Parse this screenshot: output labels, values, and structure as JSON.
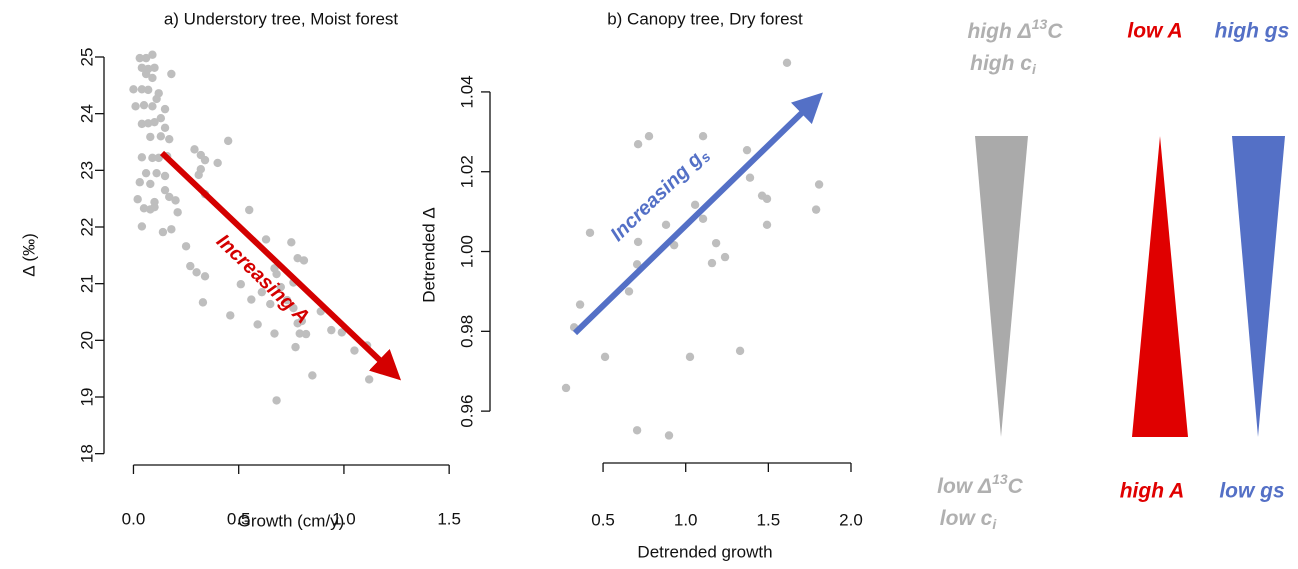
{
  "chart_data": [
    {
      "type": "scatter",
      "title": "a) Understory tree, Moist forest",
      "x_label": "Growth (cm/y)",
      "y_label": "Δ (‰)",
      "annotation": [
        "Increasing A"
      ],
      "color": "#bebebe",
      "x": [
        0.03,
        0.06,
        0.09,
        0.04,
        0.07,
        0.1,
        0.06,
        0.09,
        0.18,
        0.0,
        0.04,
        0.07,
        0.12,
        0.01,
        0.05,
        0.09,
        0.11,
        0.04,
        0.07,
        0.1,
        0.13,
        0.15,
        0.15,
        0.17,
        0.13,
        0.08,
        0.45,
        0.29,
        0.32,
        0.34,
        0.4,
        0.16,
        0.09,
        0.04,
        0.12,
        0.32,
        0.06,
        0.11,
        0.15,
        0.03,
        0.08,
        0.15,
        0.31,
        0.34,
        0.02,
        0.1,
        0.17,
        0.05,
        0.08,
        0.2,
        0.1,
        0.21,
        0.04,
        0.14,
        0.18,
        0.55,
        0.25,
        0.27,
        0.3,
        0.34,
        0.33,
        0.46,
        0.51,
        0.56,
        0.59,
        0.63,
        0.67,
        0.68,
        0.75,
        0.78,
        0.81,
        0.61,
        0.65,
        0.7,
        0.73,
        0.76,
        0.76,
        0.78,
        0.79,
        0.8,
        0.77,
        0.82,
        0.89,
        0.85,
        0.94,
        0.99,
        1.05,
        1.11,
        1.12,
        0.68,
        0.67
      ],
      "values": [
        24.98,
        24.98,
        25.04,
        24.81,
        24.79,
        24.81,
        24.7,
        24.63,
        24.7,
        24.43,
        24.43,
        24.42,
        24.36,
        24.13,
        24.15,
        24.13,
        24.26,
        23.82,
        23.83,
        23.85,
        23.92,
        24.08,
        23.75,
        23.55,
        23.6,
        23.59,
        23.52,
        23.37,
        23.27,
        23.18,
        23.13,
        23.25,
        23.22,
        23.23,
        23.22,
        23.02,
        22.95,
        22.95,
        22.9,
        22.79,
        22.76,
        22.65,
        22.92,
        22.58,
        22.49,
        22.44,
        22.53,
        22.33,
        22.31,
        22.47,
        22.35,
        22.26,
        22.01,
        21.91,
        21.96,
        22.3,
        21.66,
        21.31,
        21.2,
        21.13,
        20.67,
        20.44,
        20.99,
        20.72,
        20.28,
        21.78,
        21.27,
        21.17,
        21.73,
        21.45,
        21.41,
        20.85,
        20.64,
        20.94,
        20.71,
        21.02,
        20.57,
        20.3,
        20.12,
        20.34,
        19.88,
        20.11,
        20.51,
        19.38,
        20.18,
        20.14,
        19.82,
        19.91,
        19.31,
        18.94,
        20.12
      ],
      "xlim": [
        -0.14,
        1.58
      ],
      "ylim": [
        17.8,
        25.3
      ],
      "xticks": [
        {
          "value": 0,
          "label": "0.0"
        },
        0.5,
        {
          "value": 1,
          "label": "1.0"
        },
        1.5
      ],
      "yticks": [
        18,
        19,
        20,
        21,
        22,
        23,
        24,
        25
      ]
    },
    {
      "type": "scatter",
      "title": "b) Canopy tree, Dry forest",
      "x_label": "Detrended growth",
      "y_label": "Detrended Δ",
      "annotation": [
        "Increasing g",
        "s"
      ],
      "color": "#bebebe",
      "x": [
        0.276,
        0.325,
        0.361,
        0.421,
        0.512,
        0.706,
        0.899,
        0.712,
        0.778,
        0.712,
        0.706,
        0.657,
        0.881,
        0.93,
        1.026,
        1.057,
        1.105,
        1.105,
        1.159,
        1.184,
        1.238,
        1.329,
        1.371,
        1.389,
        1.462,
        1.492,
        1.492,
        1.613,
        1.789,
        1.807
      ],
      "values": [
        0.9658,
        0.981,
        0.9867,
        1.0047,
        0.9736,
        0.9552,
        0.9539,
        1.0269,
        1.0289,
        1.0024,
        0.9968,
        0.99,
        1.0067,
        1.0016,
        0.9736,
        1.0117,
        1.0082,
        1.0289,
        0.9971,
        1.0021,
        0.9986,
        0.9751,
        1.0254,
        1.0185,
        1.014,
        1.0132,
        1.0067,
        1.0473,
        1.0105,
        1.0168
      ],
      "xlim": [
        -0.184,
        2.115
      ],
      "ylim": [
        0.947,
        1.048
      ],
      "xticks": [
        0.5,
        {
          "value": 1,
          "label": "1.0"
        },
        1.5,
        {
          "value": 2,
          "label": "2.0"
        }
      ],
      "yticks": [
        0.96,
        0.98,
        {
          "value": 1,
          "label": "1.00"
        },
        1.02,
        1.04
      ]
    }
  ],
  "diagram": {
    "gray_top": [
      "high Δ",
      "13",
      "C"
    ],
    "gray_top2": [
      "high c",
      "i"
    ],
    "red_top": "low A",
    "blue_top": "high gs",
    "gray_bottom": [
      "low Δ",
      "13",
      "C"
    ],
    "gray_bottom2": [
      "low c",
      "i"
    ],
    "red_bottom": "high A",
    "blue_bottom": "low gs"
  }
}
